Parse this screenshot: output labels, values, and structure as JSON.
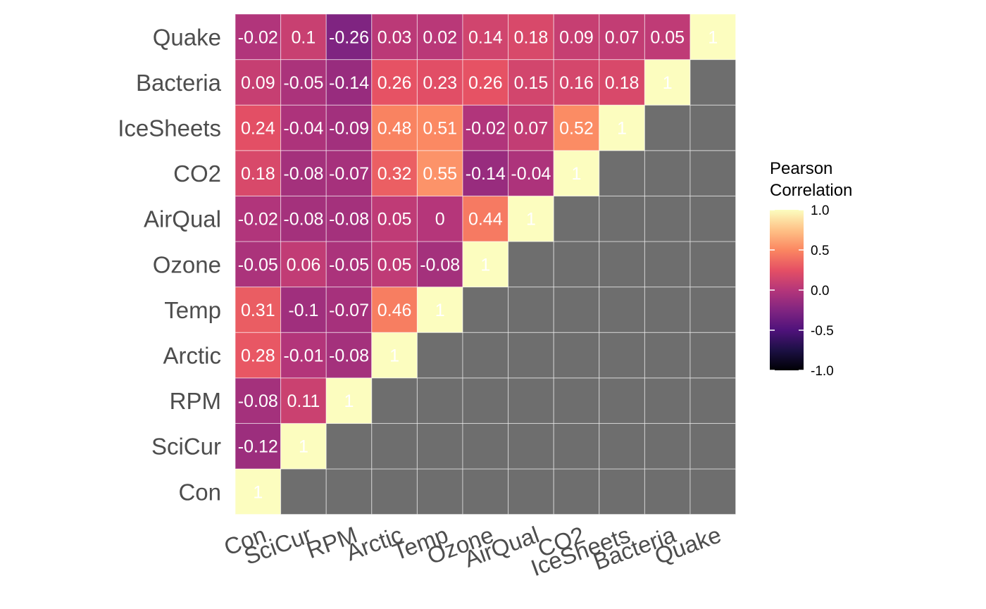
{
  "chart_data": {
    "type": "heatmap",
    "variables": [
      "Con",
      "SciCur",
      "RPM",
      "Arctic",
      "Temp",
      "Ozone",
      "AirQual",
      "CO2",
      "IceSheets",
      "Bacteria",
      "Quake"
    ],
    "matrix": [
      [
        1,
        null,
        null,
        null,
        null,
        null,
        null,
        null,
        null,
        null,
        null
      ],
      [
        -0.12,
        1,
        null,
        null,
        null,
        null,
        null,
        null,
        null,
        null,
        null
      ],
      [
        -0.08,
        0.11,
        1,
        null,
        null,
        null,
        null,
        null,
        null,
        null,
        null
      ],
      [
        0.28,
        -0.01,
        -0.08,
        1,
        null,
        null,
        null,
        null,
        null,
        null,
        null
      ],
      [
        0.31,
        -0.1,
        -0.07,
        0.46,
        1,
        null,
        null,
        null,
        null,
        null,
        null
      ],
      [
        -0.05,
        0.06,
        -0.05,
        0.05,
        -0.08,
        1,
        null,
        null,
        null,
        null,
        null
      ],
      [
        -0.02,
        -0.08,
        -0.08,
        0.05,
        0,
        0.44,
        1,
        null,
        null,
        null,
        null
      ],
      [
        0.18,
        -0.08,
        -0.07,
        0.32,
        0.55,
        -0.14,
        -0.04,
        1,
        null,
        null,
        null
      ],
      [
        0.24,
        -0.04,
        -0.09,
        0.48,
        0.51,
        -0.02,
        0.07,
        0.52,
        1,
        null,
        null
      ],
      [
        0.09,
        -0.05,
        -0.14,
        0.26,
        0.23,
        0.26,
        0.15,
        0.16,
        0.18,
        1,
        null
      ],
      [
        -0.02,
        0.1,
        -0.26,
        0.03,
        0.02,
        0.14,
        0.18,
        0.09,
        0.07,
        0.05,
        1
      ]
    ],
    "value_range": [
      -1,
      1
    ],
    "colorscale": "magma",
    "missing_color": "#6e6e6e",
    "legend": {
      "title_line1": "Pearson",
      "title_line2": "Correlation",
      "ticks": [
        "1.0",
        "0.5",
        "0.0",
        "-0.5",
        "-1.0"
      ],
      "tick_values": [
        1,
        0.5,
        0,
        -0.5,
        -1
      ],
      "placement": "right"
    },
    "title": "",
    "xlabel": "",
    "ylabel": ""
  }
}
